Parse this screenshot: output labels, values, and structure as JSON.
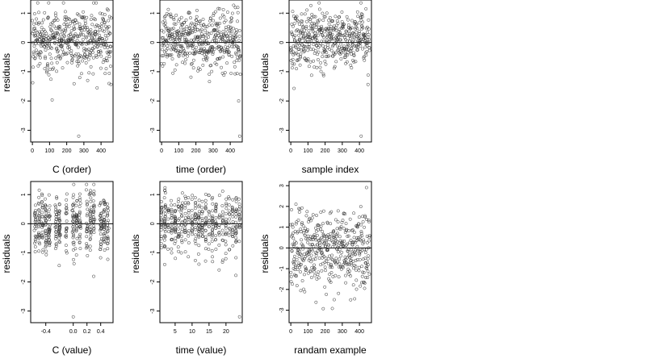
{
  "chart_data": [
    {
      "type": "scatter",
      "xlabel": "C (order)",
      "ylabel": "residuals",
      "xlim": [
        -10,
        470
      ],
      "ylim": [
        -3.4,
        1.45
      ],
      "xticks": [
        0,
        100,
        200,
        300,
        400
      ],
      "yticks": [
        -3,
        -2,
        -1,
        0,
        1
      ],
      "hline": 0,
      "n_points": 460,
      "outlier": {
        "x": 270,
        "y": -3.2
      }
    },
    {
      "type": "scatter",
      "xlabel": "time (order)",
      "ylabel": "residuals",
      "xlim": [
        -10,
        470
      ],
      "ylim": [
        -3.4,
        1.45
      ],
      "xticks": [
        0,
        100,
        200,
        300,
        400
      ],
      "yticks": [
        -3,
        -2,
        -1,
        0,
        1
      ],
      "hline": 0,
      "n_points": 460,
      "outlier": {
        "x": 455,
        "y": -3.2
      }
    },
    {
      "type": "scatter",
      "xlabel": "sample index",
      "ylabel": "residuals",
      "xlim": [
        -10,
        470
      ],
      "ylim": [
        -3.4,
        1.45
      ],
      "xticks": [
        0,
        100,
        200,
        300,
        400
      ],
      "yticks": [
        -3,
        -2,
        -1,
        0,
        1
      ],
      "hline": 0,
      "n_points": 460,
      "outlier": {
        "x": 410,
        "y": -3.2
      }
    },
    {
      "type": "scatter",
      "xlabel": "C (value)",
      "ylabel": "residuals",
      "xlim": [
        -0.62,
        0.58
      ],
      "ylim": [
        -3.4,
        1.45
      ],
      "xticks": [
        -0.4,
        0.0,
        0.2,
        0.4
      ],
      "xtick_labels": [
        "-0.4",
        "0.0",
        "0.2",
        "0.4"
      ],
      "yticks": [
        -3,
        -2,
        -1,
        0,
        1
      ],
      "hline": 0,
      "n_points": 460,
      "outlier": {
        "x": 0.0,
        "y": -3.2
      }
    },
    {
      "type": "scatter",
      "xlabel": "time (value)",
      "ylabel": "residuals",
      "xlim": [
        0.5,
        24.8
      ],
      "ylim": [
        -3.4,
        1.45
      ],
      "xticks": [
        5,
        10,
        15,
        20
      ],
      "yticks": [
        -3,
        -2,
        -1,
        0,
        1
      ],
      "hline": 0,
      "n_points": 460,
      "outlier": {
        "x": 24,
        "y": -3.2
      }
    },
    {
      "type": "scatter",
      "xlabel": "randam example",
      "ylabel": "residuals",
      "xlim": [
        -10,
        470
      ],
      "ylim": [
        -3.6,
        3.2
      ],
      "xticks": [
        0,
        100,
        200,
        300,
        400
      ],
      "yticks": [
        -3,
        -2,
        -1,
        0,
        1,
        2,
        3
      ],
      "hline": 0,
      "n_points": 460
    }
  ]
}
